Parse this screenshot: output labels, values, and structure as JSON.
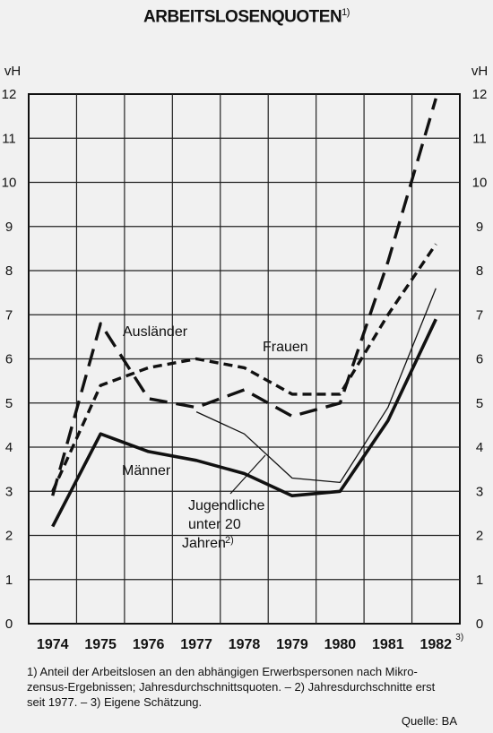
{
  "title": "ARBEITSLOSENQUOTEN",
  "title_note": "1)",
  "chart_data": {
    "type": "line",
    "title": "ARBEITSLOSENQUOTEN",
    "ylabel": "vH",
    "ylim": [
      0,
      12
    ],
    "yticks": [
      "0",
      "1",
      "2",
      "3",
      "4",
      "5",
      "6",
      "7",
      "8",
      "9",
      "10",
      "11",
      "12"
    ],
    "categories": [
      "1974",
      "1975",
      "1976",
      "1977",
      "1978",
      "1979",
      "1980",
      "1981",
      "1982"
    ],
    "category_note": "3)",
    "grid": true,
    "series": [
      {
        "name": "Ausländer",
        "style": "long-dash",
        "x": [
          "1974",
          "1975",
          "1976",
          "1977",
          "1978",
          "1979",
          "1980",
          "1981",
          "1982"
        ],
        "values": [
          2.9,
          6.8,
          5.1,
          4.9,
          5.3,
          4.7,
          5.0,
          8.2,
          11.9
        ]
      },
      {
        "name": "Frauen",
        "style": "short-dash",
        "x": [
          "1974",
          "1975",
          "1976",
          "1977",
          "1978",
          "1979",
          "1980",
          "1981",
          "1982"
        ],
        "values": [
          3.0,
          5.4,
          5.8,
          6.0,
          5.8,
          5.2,
          5.2,
          7.0,
          8.6
        ]
      },
      {
        "name": "Männer",
        "style": "thick-solid",
        "x": [
          "1974",
          "1975",
          "1976",
          "1977",
          "1978",
          "1979",
          "1980",
          "1981",
          "1982"
        ],
        "values": [
          2.2,
          4.3,
          3.9,
          3.7,
          3.4,
          2.9,
          3.0,
          4.6,
          6.9
        ]
      },
      {
        "name": "Jugendliche unter 20 Jahren",
        "name_note": "2)",
        "style": "thin-solid",
        "x": [
          "1977",
          "1978",
          "1979",
          "1980",
          "1981",
          "1982"
        ],
        "values": [
          4.8,
          4.3,
          3.3,
          3.2,
          4.9,
          7.6
        ]
      }
    ],
    "labels": {
      "auslaender": "Ausländer",
      "frauen": "Frauen",
      "maenner": "Männer",
      "jugend_1": "Jugendliche",
      "jugend_2": "unter 20",
      "jugend_3": "Jahren",
      "jugend_note": "2)"
    }
  },
  "footnote_lines": [
    "1) Anteil der Arbeitslosen an den abhängigen Erwerbspersonen nach Mikro-",
    "zensus-Ergebnissen; Jahresdurchschnittsquoten. – 2) Jahresdurchschnitte erst",
    "seit 1977. – 3) Eigene Schätzung."
  ],
  "source": "Quelle: BA"
}
